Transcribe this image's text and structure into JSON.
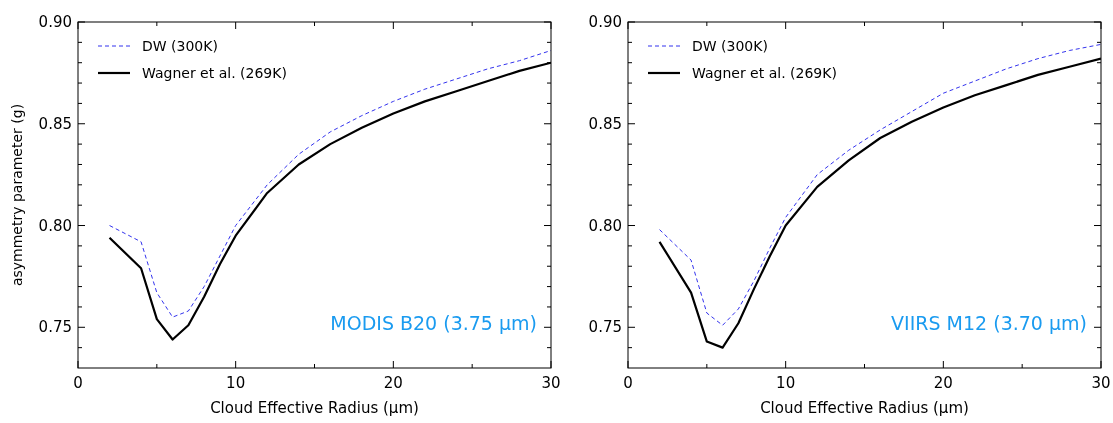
{
  "chart_data": [
    {
      "type": "line",
      "xlabel": "Cloud Effective Radius (μm)",
      "ylabel": "asymmetry parameter (g)",
      "annotations": [
        "MODIS B20 (3.75 μm)"
      ],
      "x": [
        2,
        4,
        5,
        6,
        7,
        8,
        9,
        10,
        12,
        14,
        16,
        18,
        20,
        22,
        24,
        26,
        28,
        30
      ],
      "series": [
        {
          "name": "DW (300K)",
          "color": "#3333ee",
          "line_style": "dashed",
          "values": [
            0.8,
            0.792,
            0.767,
            0.755,
            0.758,
            0.77,
            0.785,
            0.8,
            0.82,
            0.835,
            0.846,
            0.854,
            0.861,
            0.867,
            0.872,
            0.877,
            0.881,
            0.886
          ]
        },
        {
          "name": "Wagner et al. (269K)",
          "color": "#000000",
          "line_style": "solid",
          "values": [
            0.794,
            0.779,
            0.754,
            0.744,
            0.751,
            0.765,
            0.781,
            0.795,
            0.816,
            0.83,
            0.84,
            0.848,
            0.855,
            0.861,
            0.866,
            0.871,
            0.876,
            0.88
          ]
        }
      ],
      "xlim": [
        0,
        30
      ],
      "ylim": [
        0.73,
        0.9
      ],
      "xticks": [
        0,
        {
          "value": 5,
          "label": null
        },
        10,
        {
          "value": 15,
          "label": null
        },
        20,
        {
          "value": 25,
          "label": null
        },
        30
      ],
      "yticks": [
        {
          "value": 0.74,
          "label": null
        },
        {
          "value": 0.75,
          "label": "0.75"
        },
        {
          "value": 0.76,
          "label": null
        },
        {
          "value": 0.77,
          "label": null
        },
        {
          "value": 0.78,
          "label": null
        },
        {
          "value": 0.79,
          "label": null
        },
        {
          "value": 0.8,
          "label": "0.80"
        },
        {
          "value": 0.81,
          "label": null
        },
        {
          "value": 0.82,
          "label": null
        },
        {
          "value": 0.83,
          "label": null
        },
        {
          "value": 0.84,
          "label": null
        },
        {
          "value": 0.85,
          "label": "0.85"
        },
        {
          "value": 0.86,
          "label": null
        },
        {
          "value": 0.87,
          "label": null
        },
        {
          "value": 0.88,
          "label": null
        },
        {
          "value": 0.89,
          "label": null
        },
        {
          "value": 0.9,
          "label": "0.90"
        }
      ],
      "legend": "top left",
      "grid": false
    },
    {
      "type": "line",
      "xlabel": "Cloud Effective Radius (μm)",
      "annotations": [
        "VIIRS M12 (3.70 μm)"
      ],
      "x": [
        2,
        4,
        5,
        6,
        7,
        8,
        9,
        10,
        12,
        14,
        16,
        18,
        20,
        22,
        24,
        26,
        28,
        30
      ],
      "series": [
        {
          "name": "DW (300K)",
          "color": "#3333ee",
          "line_style": "dashed",
          "values": [
            0.798,
            0.783,
            0.757,
            0.751,
            0.759,
            0.773,
            0.789,
            0.804,
            0.825,
            0.837,
            0.847,
            0.856,
            0.865,
            0.871,
            0.877,
            0.882,
            0.886,
            0.889
          ]
        },
        {
          "name": "Wagner et al. (269K)",
          "color": "#000000",
          "line_style": "solid",
          "values": [
            0.792,
            0.767,
            0.743,
            0.74,
            0.752,
            0.769,
            0.785,
            0.8,
            0.819,
            0.832,
            0.843,
            0.851,
            0.858,
            0.864,
            0.869,
            0.874,
            0.878,
            0.882
          ]
        }
      ],
      "xlim": [
        0,
        30
      ],
      "ylim": [
        0.73,
        0.9
      ],
      "xticks": [
        0,
        {
          "value": 5,
          "label": null
        },
        10,
        {
          "value": 15,
          "label": null
        },
        20,
        {
          "value": 25,
          "label": null
        },
        30
      ],
      "yticks": [
        {
          "value": 0.74,
          "label": null
        },
        {
          "value": 0.75,
          "label": "0.75"
        },
        {
          "value": 0.76,
          "label": null
        },
        {
          "value": 0.77,
          "label": null
        },
        {
          "value": 0.78,
          "label": null
        },
        {
          "value": 0.79,
          "label": null
        },
        {
          "value": 0.8,
          "label": "0.80"
        },
        {
          "value": 0.81,
          "label": null
        },
        {
          "value": 0.82,
          "label": null
        },
        {
          "value": 0.83,
          "label": null
        },
        {
          "value": 0.84,
          "label": null
        },
        {
          "value": 0.85,
          "label": "0.85"
        },
        {
          "value": 0.86,
          "label": null
        },
        {
          "value": 0.87,
          "label": null
        },
        {
          "value": 0.88,
          "label": null
        },
        {
          "value": 0.89,
          "label": null
        },
        {
          "value": 0.9,
          "label": "0.90"
        }
      ],
      "legend": "top left",
      "grid": false
    }
  ]
}
